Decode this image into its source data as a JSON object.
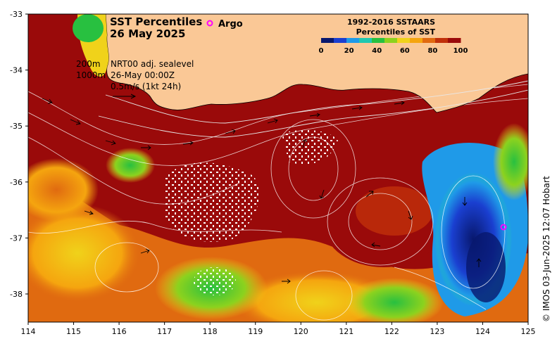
{
  "map": {
    "title_line1": "SST Percentiles",
    "title_line2": "26 May 2025",
    "argo_label": "Argo",
    "argo_marker_color": "#ff00ff",
    "legend_title_line1": "1992-2016 SSTAARS",
    "legend_title_line2": "Percentiles of SST",
    "legend_colors": [
      "#08186e",
      "#1a3fd0",
      "#1f9ae8",
      "#20c8b0",
      "#28c040",
      "#8cd21e",
      "#f0d21a",
      "#f5a50f",
      "#e06a10",
      "#c0300a",
      "#9a0a0a"
    ],
    "legend_ticks": [
      "0",
      "20",
      "40",
      "60",
      "80",
      "100"
    ],
    "depth_200": "200m",
    "depth_1000": "1000m",
    "sealevel_label": "NRT00 adj. sealevel",
    "valid_time": "26-May 00:00Z",
    "speed_scale": "0.5m/s (1kt 24h)",
    "credit": "© IMOS 03-Jun-2025 12:07 Hobart",
    "x_ticks": [
      "114",
      "115",
      "116",
      "117",
      "118",
      "119",
      "120",
      "121",
      "122",
      "123",
      "124",
      "125"
    ],
    "y_ticks": [
      "-33",
      "-34",
      "-35",
      "-36",
      "-37",
      "-38"
    ],
    "land_color": "#fac896",
    "ocean_base_color": "#9a0a0a"
  }
}
